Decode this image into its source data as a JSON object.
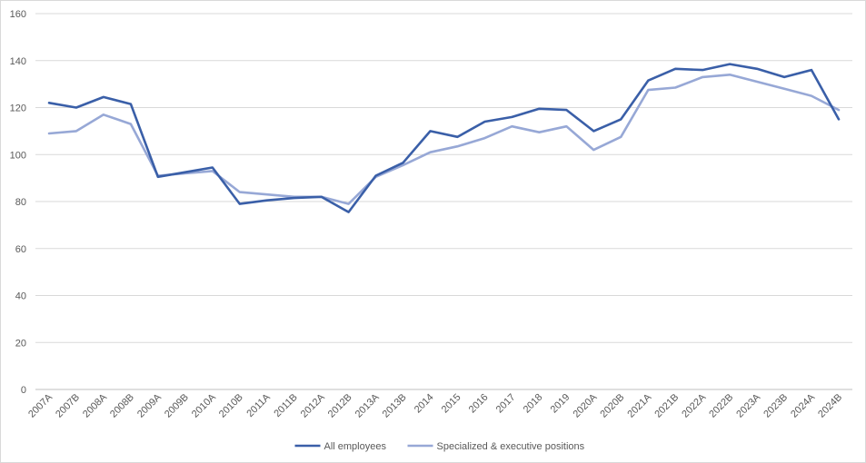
{
  "chart_data": {
    "type": "line",
    "title": "",
    "xlabel": "",
    "ylabel": "",
    "ylim": [
      0,
      160
    ],
    "yticks": [
      0,
      20,
      40,
      60,
      80,
      100,
      120,
      140,
      160
    ],
    "grid": "horizontal",
    "legend_position": "bottom",
    "categories": [
      "2007A",
      "2007B",
      "2008A",
      "2008B",
      "2009A",
      "2009B",
      "2010A",
      "2010B",
      "2011A",
      "2011B",
      "2012A",
      "2012B",
      "2013A",
      "2013B",
      "2014",
      "2015",
      "2016",
      "2017",
      "2018",
      "2019",
      "2020A",
      "2020B",
      "2021A",
      "2021B",
      "2022A",
      "2022B",
      "2023A",
      "2023B",
      "2024A",
      "2024B"
    ],
    "series": [
      {
        "name": "All employees",
        "color": "#3a5fa8",
        "values": [
          122,
          120,
          124.5,
          121.5,
          90.5,
          92.5,
          94.5,
          79,
          80.5,
          81.5,
          82,
          75.5,
          91,
          96.5,
          110,
          107.5,
          114,
          116,
          119.5,
          119,
          110,
          115,
          131.5,
          136.5,
          136,
          138.5,
          136.5,
          133,
          136,
          115
        ]
      },
      {
        "name": "Specialized & executive positions",
        "color": "#97a8d6",
        "values": [
          109,
          110,
          117,
          113,
          91,
          92,
          93,
          84,
          83,
          82,
          82,
          79,
          90.5,
          95.5,
          101,
          103.5,
          107,
          112,
          109.5,
          112,
          102,
          107.5,
          127.5,
          128.5,
          133,
          134,
          131,
          128,
          125,
          119
        ]
      }
    ]
  }
}
